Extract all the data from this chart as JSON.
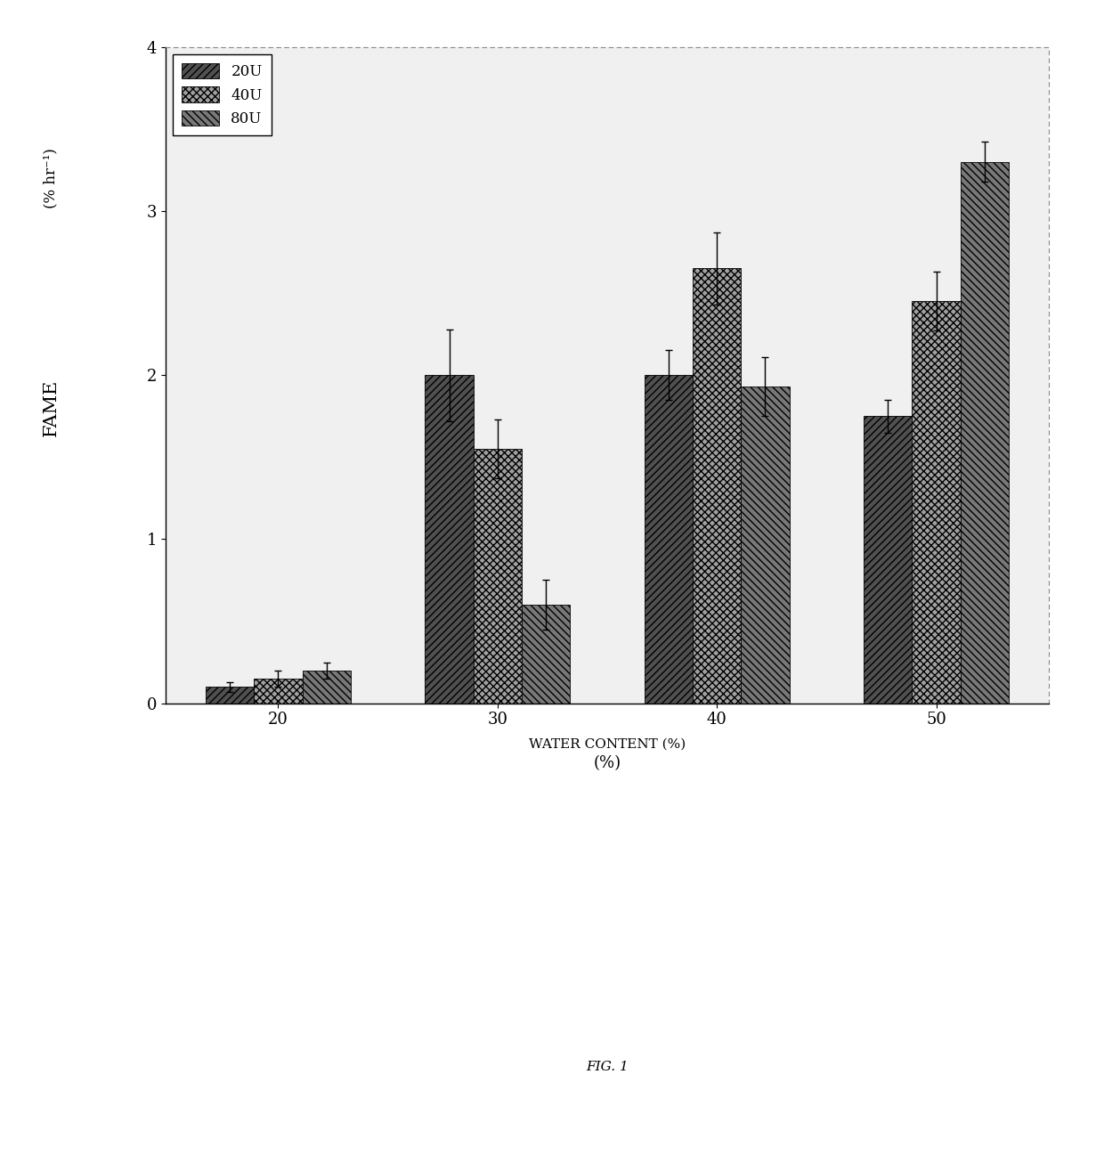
{
  "categories": [
    "20",
    "30",
    "40",
    "50"
  ],
  "series_20U": [
    0.1,
    2.0,
    2.0,
    1.75
  ],
  "series_40U": [
    0.15,
    1.55,
    2.65,
    2.45
  ],
  "series_80U": [
    0.2,
    0.6,
    1.93,
    3.3
  ],
  "errors_20U": [
    0.03,
    0.28,
    0.15,
    0.1
  ],
  "errors_40U": [
    0.05,
    0.18,
    0.22,
    0.18
  ],
  "errors_80U": [
    0.05,
    0.15,
    0.18,
    0.12
  ],
  "ylabel_top": "(% hr⁻¹)",
  "ylabel_main": "FAME",
  "xlabel": "(%)",
  "xlabel2": "WATER CONTENT (%)",
  "ylim": [
    0,
    4
  ],
  "yticks": [
    0,
    1,
    2,
    3,
    4
  ],
  "legend_labels": [
    "20U",
    "40U",
    "80U"
  ],
  "bar_width": 0.22,
  "fig_caption": "FIG. 1",
  "background_color": "#ffffff",
  "plot_bg": "#f0f0f0"
}
